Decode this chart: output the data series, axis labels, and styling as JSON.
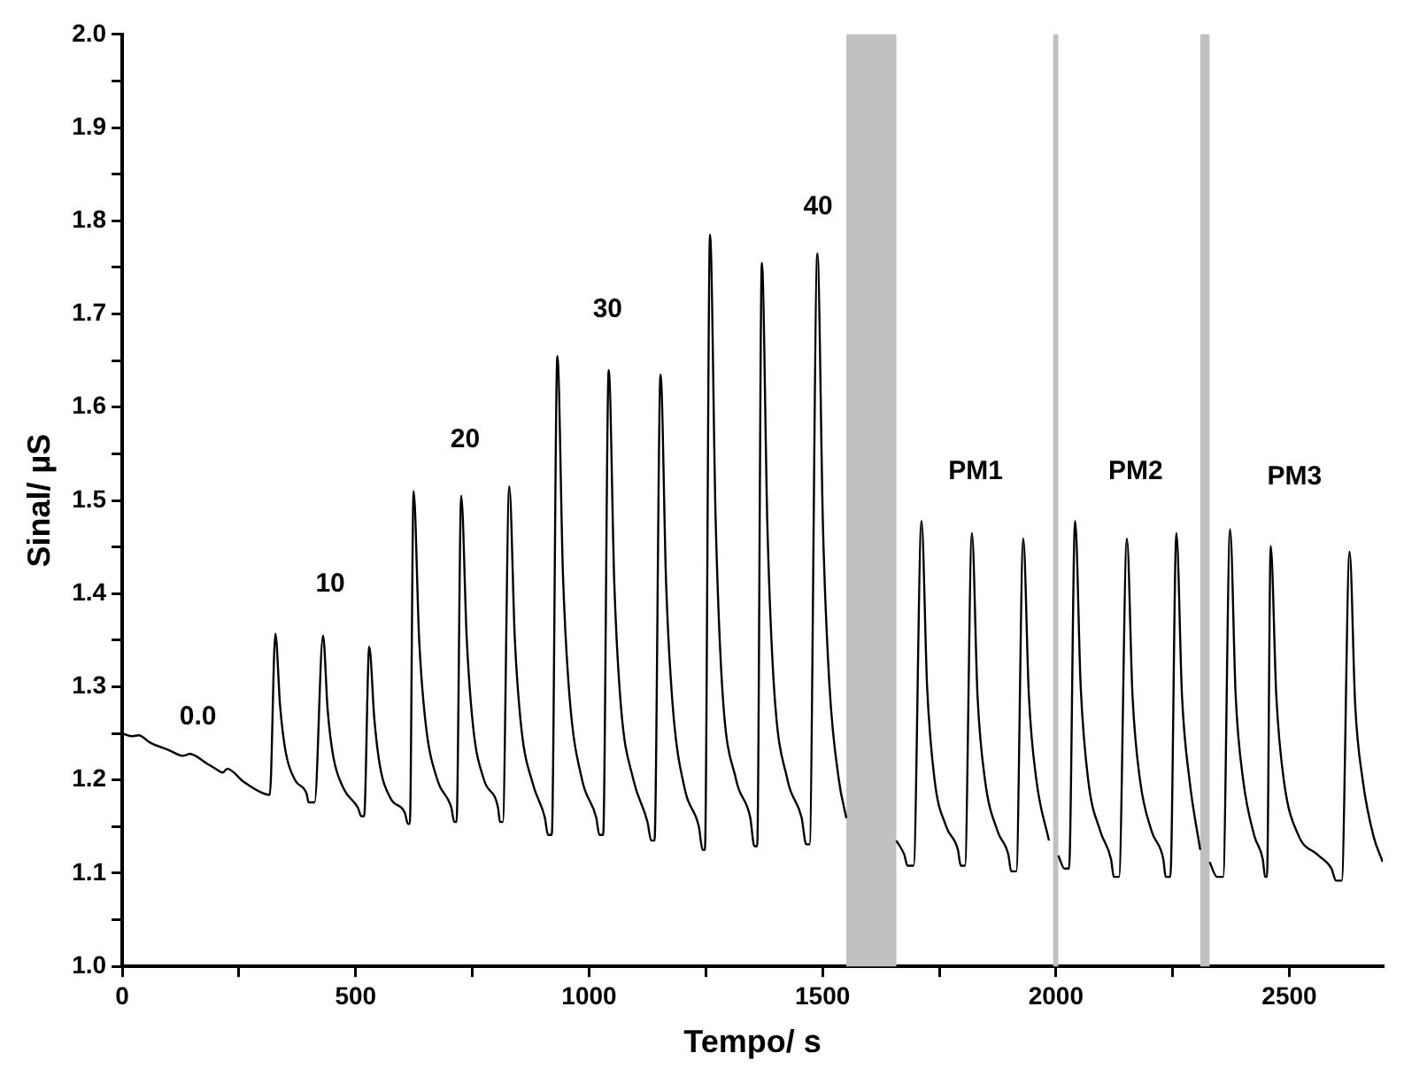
{
  "chart_data": {
    "type": "line",
    "xlabel": "Tempo/ s",
    "ylabel": "Sinal/ µS",
    "xlim": [
      0,
      2700
    ],
    "ylim": [
      1.0,
      2.0
    ],
    "xticks": [
      0,
      {
        "value": 250,
        "label": null
      },
      500,
      {
        "value": 750,
        "label": null
      },
      1000,
      {
        "value": 1250,
        "label": null
      },
      1500,
      {
        "value": 1750,
        "label": null
      },
      2000,
      {
        "value": 2250,
        "label": null
      },
      2500
    ],
    "yticks": [
      {
        "value": 1.0,
        "label": "1.0"
      },
      {
        "value": 1.05,
        "label": null
      },
      {
        "value": 1.1,
        "label": "1.1"
      },
      {
        "value": 1.15,
        "label": null
      },
      {
        "value": 1.2,
        "label": "1.2"
      },
      {
        "value": 1.25,
        "label": null
      },
      {
        "value": 1.3,
        "label": "1.3"
      },
      {
        "value": 1.35,
        "label": null
      },
      {
        "value": 1.4,
        "label": "1.4"
      },
      {
        "value": 1.45,
        "label": null
      },
      {
        "value": 1.5,
        "label": "1.5"
      },
      {
        "value": 1.55,
        "label": null
      },
      {
        "value": 1.6,
        "label": "1.6"
      },
      {
        "value": 1.65,
        "label": null
      },
      {
        "value": 1.7,
        "label": "1.7"
      },
      {
        "value": 1.75,
        "label": null
      },
      {
        "value": 1.8,
        "label": "1.8"
      },
      {
        "value": 1.85,
        "label": null
      },
      {
        "value": 1.9,
        "label": "1.9"
      },
      {
        "value": 1.95,
        "label": null
      },
      {
        "value": 2.0,
        "label": "2.0"
      }
    ],
    "grid": false,
    "legend": false,
    "marker": "none",
    "line_style": "solid",
    "series": [
      {
        "color": "#000000",
        "x": [
          0,
          20,
          35,
          60,
          100,
          130,
          145,
          180,
          200,
          215,
          225,
          260,
          300,
          316,
          328,
          338,
          350,
          370,
          395,
          399,
          412,
          430,
          440,
          452,
          475,
          505,
          512,
          518,
          529,
          540,
          552,
          575,
          605,
          612,
          616,
          624,
          636,
          650,
          675,
          705,
          711,
          716,
          726,
          738,
          752,
          775,
          805,
          809,
          815,
          829,
          841,
          855,
          880,
          905,
          912,
          920,
          932,
          944,
          958,
          985,
          1015,
          1022,
          1030,
          1042,
          1054,
          1068,
          1095,
          1125,
          1133,
          1140,
          1153,
          1165,
          1179,
          1205,
          1235,
          1243,
          1248,
          1259,
          1271,
          1285,
          1315,
          1345,
          1354,
          1360,
          1370,
          1382,
          1396,
          1425,
          1455,
          1465,
          1472,
          1489,
          1501,
          1515,
          1535,
          1551,
          1600,
          1658,
          1675,
          1682,
          1695,
          1712,
          1724,
          1740,
          1765,
          1790,
          1796,
          1805,
          1820,
          1832,
          1848,
          1875,
          1898,
          1904,
          1915,
          1930,
          1942,
          1958,
          1985,
          1995,
          2005,
          2018,
          2028,
          2041,
          2053,
          2069,
          2095,
          2118,
          2124,
          2135,
          2152,
          2164,
          2180,
          2205,
          2230,
          2235,
          2245,
          2258,
          2270,
          2286,
          2309,
          2319,
          2329,
          2345,
          2358,
          2373,
          2385,
          2401,
          2425,
          2443,
          2448,
          2452,
          2460,
          2472,
          2488,
          2520,
          2560,
          2590,
          2600,
          2612,
          2629,
          2641,
          2657,
          2680,
          2700
        ],
        "values": [
          1.25,
          1.247,
          1.248,
          1.24,
          1.232,
          1.226,
          1.228,
          1.218,
          1.212,
          1.208,
          1.212,
          1.198,
          1.186,
          1.184,
          1.357,
          1.28,
          1.23,
          1.2,
          1.185,
          1.176,
          1.176,
          1.355,
          1.275,
          1.225,
          1.19,
          1.17,
          1.161,
          1.161,
          1.343,
          1.265,
          1.215,
          1.18,
          1.165,
          1.153,
          1.153,
          1.51,
          1.35,
          1.26,
          1.2,
          1.17,
          1.155,
          1.155,
          1.505,
          1.35,
          1.255,
          1.2,
          1.17,
          1.155,
          1.155,
          1.515,
          1.35,
          1.255,
          1.195,
          1.16,
          1.141,
          1.141,
          1.655,
          1.42,
          1.29,
          1.2,
          1.16,
          1.141,
          1.141,
          1.64,
          1.41,
          1.28,
          1.2,
          1.155,
          1.135,
          1.135,
          1.635,
          1.41,
          1.28,
          1.19,
          1.15,
          1.125,
          1.125,
          1.785,
          1.48,
          1.3,
          1.2,
          1.16,
          1.129,
          1.129,
          1.755,
          1.47,
          1.3,
          1.2,
          1.16,
          1.131,
          1.131,
          1.765,
          1.47,
          1.3,
          1.2,
          1.159,
          null,
          1.135,
          1.12,
          1.108,
          1.108,
          1.478,
          1.3,
          1.2,
          1.15,
          1.125,
          1.108,
          1.108,
          1.465,
          1.29,
          1.2,
          1.145,
          1.12,
          1.102,
          1.102,
          1.459,
          1.29,
          1.2,
          1.135,
          null,
          1.119,
          1.105,
          1.105,
          1.478,
          1.3,
          1.2,
          1.145,
          1.115,
          1.096,
          1.096,
          1.459,
          1.29,
          1.2,
          1.145,
          1.115,
          1.096,
          1.096,
          1.465,
          1.29,
          1.2,
          1.125,
          null,
          1.112,
          1.096,
          1.096,
          1.469,
          1.29,
          1.2,
          1.14,
          1.115,
          1.096,
          1.096,
          1.451,
          1.29,
          1.2,
          1.14,
          1.12,
          1.105,
          1.092,
          1.092,
          1.445,
          1.28,
          1.2,
          1.14,
          1.112
        ]
      }
    ],
    "bands": [
      {
        "axis": "x",
        "from": 1551,
        "to": 1658,
        "color": "#c0c0c0"
      },
      {
        "axis": "x",
        "from": 1994,
        "to": 2005,
        "color": "#c0c0c0"
      },
      {
        "axis": "x",
        "from": 2309,
        "to": 2329,
        "color": "#c0c0c0"
      }
    ],
    "annotations": [
      "0.0",
      "10",
      "20",
      "30",
      "40",
      "PM1",
      "PM2",
      "PM3"
    ]
  }
}
